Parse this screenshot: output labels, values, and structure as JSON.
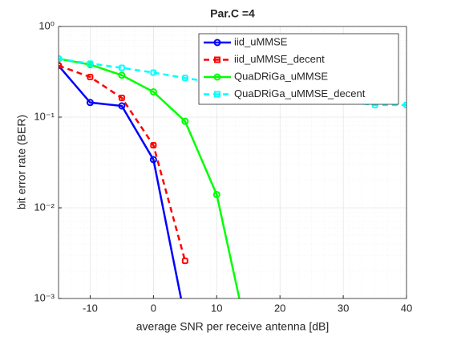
{
  "chart_data": {
    "type": "line",
    "title": "Par.C =4",
    "x_label": "average SNR per receive antenna [dB]",
    "y_label": "bit error rate (BER)",
    "x": [
      -15,
      -10,
      -5,
      0,
      5,
      10,
      15,
      20,
      25,
      30,
      35,
      40
    ],
    "series": [
      {
        "name": "iid_uMMSE",
        "color": "#0000ff",
        "dash": "solid",
        "values": [
          0.37,
          0.145,
          0.133,
          0.034,
          0.0006,
          null,
          null,
          null,
          null,
          null,
          null,
          null
        ]
      },
      {
        "name": "iid_uMMSE_decent",
        "color": "#ff0000",
        "dash": "dashed",
        "values": [
          0.37,
          0.277,
          0.163,
          0.049,
          0.0026,
          null,
          null,
          null,
          null,
          null,
          null,
          null
        ]
      },
      {
        "name": "QuaDRiGa_uMMSE",
        "color": "#00ff00",
        "dash": "solid",
        "values": [
          0.44,
          0.38,
          0.29,
          0.19,
          0.09,
          0.014,
          0.00035,
          null,
          null,
          null,
          null,
          null
        ]
      },
      {
        "name": "QuaDRiGa_uMMSE_decent",
        "color": "#00ffff",
        "dash": "dashed",
        "values": [
          0.44,
          0.39,
          0.35,
          0.31,
          0.27,
          0.24,
          0.21,
          0.19,
          0.17,
          0.15,
          0.136,
          0.136
        ]
      }
    ],
    "xlim": [
      -15,
      40
    ],
    "xticks": [
      -10,
      0,
      10,
      20,
      30,
      40
    ],
    "ylim": [
      0.001,
      1
    ],
    "yticks": [
      {
        "value": 0.001,
        "label": "10⁻³"
      },
      {
        "value": 0.01,
        "label": "10⁻²"
      },
      {
        "value": 0.1,
        "label": "10⁻¹"
      },
      {
        "value": 1,
        "label": "10⁰"
      }
    ],
    "y_scale": "log",
    "grid": true,
    "legend": "northeast"
  }
}
